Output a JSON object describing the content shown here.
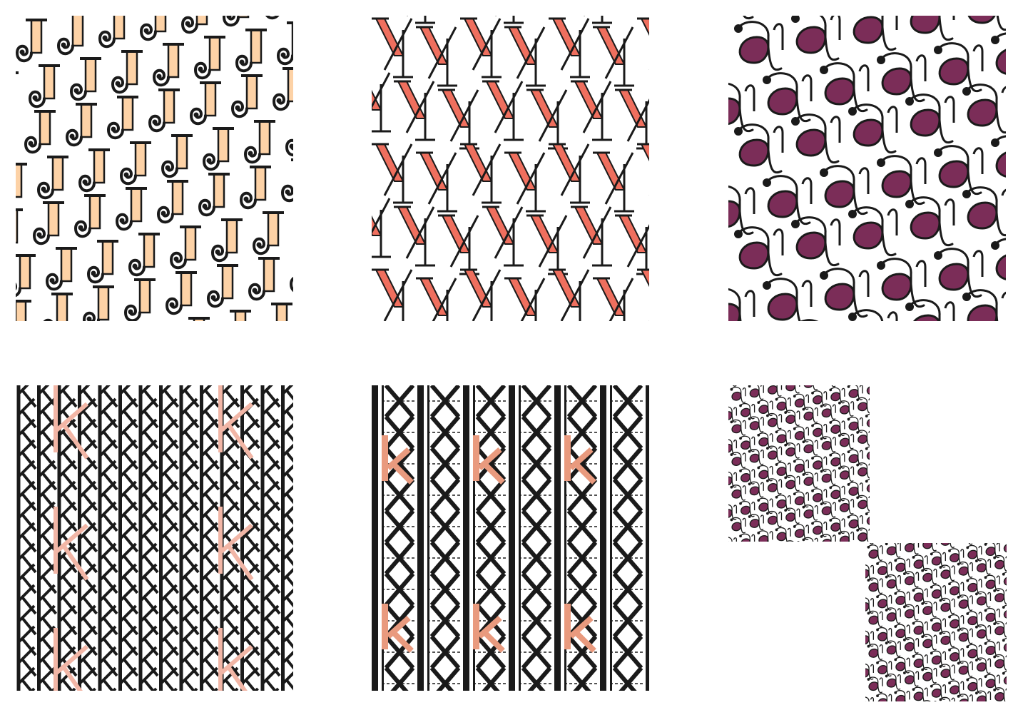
{
  "palette": {
    "ink": "#1a1a1a",
    "peach": "#fdd2a6",
    "coral": "#ef6f5e",
    "plum": "#7b2d58",
    "pink": "#f2b6a6",
    "salmon": "#e99a7e"
  },
  "panels": [
    {
      "id": "t-j",
      "name": "pattern-letter-j-tile",
      "motif": "J"
    },
    {
      "id": "t-y",
      "name": "pattern-letter-y-tile",
      "motif": "Y"
    },
    {
      "id": "t-a",
      "name": "pattern-letter-a-tile",
      "motif": "a"
    },
    {
      "id": "t-k1",
      "name": "pattern-letter-k-lattice-tile",
      "motif": "k"
    },
    {
      "id": "t-k2",
      "name": "pattern-letter-k-diamond-tile",
      "motif": "k"
    },
    {
      "id": "t-s1",
      "name": "pattern-small-a-tile-upper",
      "motif": "a"
    },
    {
      "id": "t-s2",
      "name": "pattern-small-a-tile-lower",
      "motif": "a"
    }
  ]
}
